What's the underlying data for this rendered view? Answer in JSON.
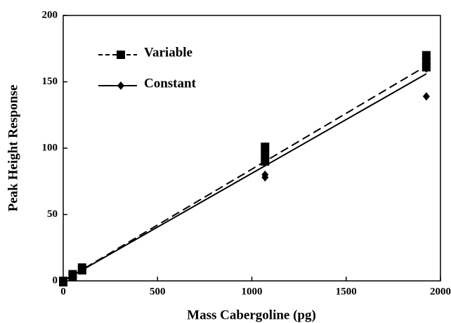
{
  "chart_data": {
    "type": "scatter",
    "x_label": "Mass Cabergoline (pg)",
    "y_label": "Peak Height Response",
    "xlim": [
      0,
      2000
    ],
    "xticks": [
      0,
      500,
      1000,
      1500,
      2000
    ],
    "ylim": [
      0,
      200
    ],
    "yticks": [
      0,
      50,
      100,
      150,
      200
    ],
    "legend": "upper left",
    "series": [
      {
        "name": "Variable",
        "color": "#000000",
        "marker": "square",
        "line_style": "dashed",
        "x": [
          0,
          0,
          50,
          50,
          100,
          100,
          1070,
          1070,
          1070,
          1925,
          1925,
          1925
        ],
        "values": [
          0,
          -1,
          3,
          5,
          8,
          10,
          90,
          95,
          101,
          161,
          165,
          170
        ],
        "fit": {
          "x": [
            0,
            1925
          ],
          "values": [
            0,
            162
          ]
        }
      },
      {
        "name": "Constant",
        "color": "#000000",
        "marker": "diamond",
        "line_style": "solid",
        "x": [
          0,
          50,
          100,
          1070,
          1070,
          1925,
          1925
        ],
        "values": [
          0,
          4,
          8,
          80,
          78,
          160,
          139
        ],
        "fit": {
          "x": [
            0,
            1925
          ],
          "values": [
            0,
            156
          ]
        }
      }
    ]
  }
}
